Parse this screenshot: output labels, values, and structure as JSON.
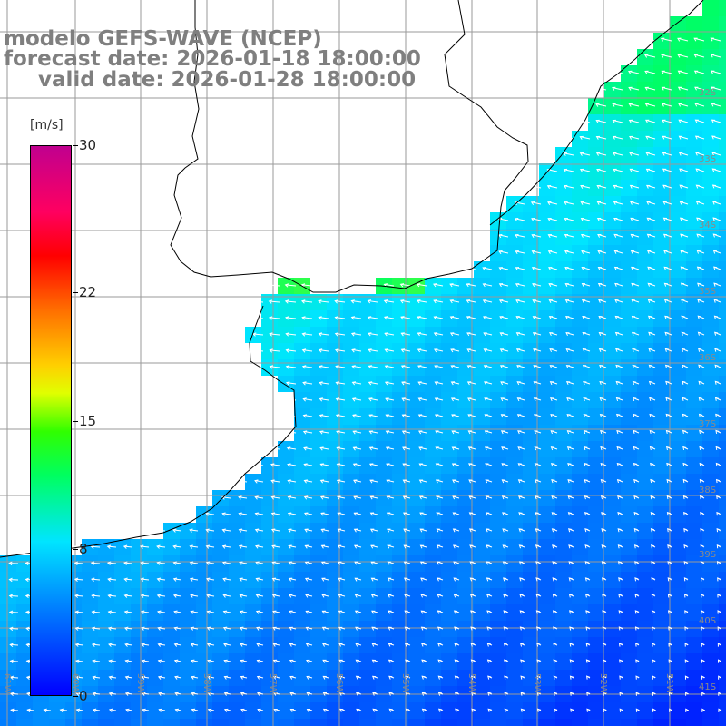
{
  "header": {
    "line1": "modelo GEFS-WAVE (NCEP)",
    "line2": "forecast date: 2026-01-18 18:00:00",
    "line3": "valid date: 2026-01-28 18:00:00"
  },
  "colorbar": {
    "units": "[m/s]",
    "ticks": [
      "30",
      "22",
      "15",
      "8",
      "0"
    ],
    "tick_values": [
      30,
      22,
      15,
      8,
      0
    ],
    "min": 0,
    "max": 30,
    "palette": [
      "#0000ff",
      "#0080ff",
      "#00e5ff",
      "#00ff60",
      "#e0ff00",
      "#ff7000",
      "#ff0000",
      "#c0008f"
    ]
  },
  "grid": {
    "lon_labels": [
      "61W",
      "60W",
      "59W",
      "58W",
      "57W",
      "56W",
      "55W",
      "54W",
      "53W",
      "52W",
      "51W"
    ],
    "lat_labels": [
      "32S",
      "33S",
      "34S",
      "35S",
      "36S",
      "37S",
      "38S",
      "39S",
      "40S",
      "41S"
    ]
  },
  "map": {
    "land_color": "#ffffff",
    "coast_color": "#000000",
    "grid_color": "#9a9a9a",
    "arrow_color": "#ffffff",
    "dominant_wind_direction": "from east / northeast"
  }
}
